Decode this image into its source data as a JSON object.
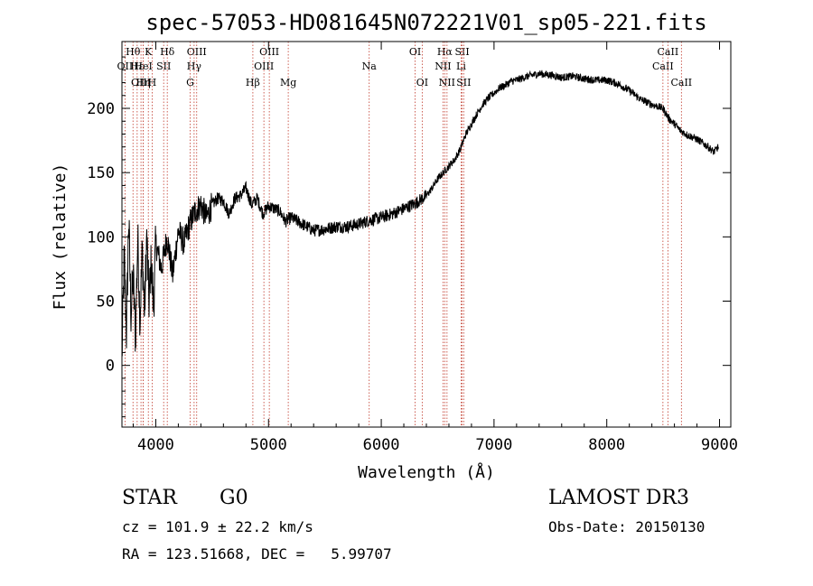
{
  "chart_data": {
    "type": "line",
    "title": "spec-57053-HD081645N072221V01_sp05-221.fits",
    "xlabel": "Wavelength (Å)",
    "ylabel": "Flux (relative)",
    "xlim": [
      3700,
      9100
    ],
    "ylim": [
      -48,
      252
    ],
    "xticks": [
      4000,
      5000,
      6000,
      7000,
      8000,
      9000
    ],
    "yticks": [
      0,
      50,
      100,
      150,
      200
    ],
    "series": [
      {
        "name": "flux",
        "x": [
          3700,
          3720,
          3740,
          3760,
          3780,
          3800,
          3820,
          3840,
          3860,
          3880,
          3900,
          3920,
          3940,
          3960,
          3980,
          4000,
          4050,
          4100,
          4150,
          4200,
          4250,
          4300,
          4350,
          4400,
          4450,
          4500,
          4550,
          4600,
          4650,
          4700,
          4750,
          4800,
          4850,
          4900,
          4950,
          5000,
          5050,
          5100,
          5150,
          5200,
          5300,
          5400,
          5500,
          5600,
          5700,
          5800,
          5900,
          6000,
          6100,
          6200,
          6300,
          6400,
          6450,
          6500,
          6550,
          6600,
          6650,
          6700,
          6750,
          6800,
          6850,
          6900,
          6950,
          7000,
          7050,
          7100,
          7150,
          7200,
          7300,
          7400,
          7500,
          7600,
          7700,
          7800,
          7900,
          8000,
          8100,
          8200,
          8300,
          8400,
          8500,
          8550,
          8600,
          8650,
          8700,
          8750,
          8800,
          8850,
          8900,
          8950,
          8990
        ],
        "y": [
          5,
          85,
          25,
          115,
          40,
          70,
          20,
          100,
          35,
          90,
          40,
          100,
          50,
          80,
          45,
          95,
          75,
          100,
          70,
          105,
          95,
          110,
          120,
          125,
          115,
          125,
          130,
          128,
          118,
          130,
          132,
          138,
          125,
          130,
          118,
          124,
          122,
          120,
          112,
          115,
          110,
          105,
          106,
          108,
          108,
          110,
          113,
          115,
          118,
          122,
          126,
          132,
          138,
          145,
          150,
          155,
          160,
          168,
          180,
          188,
          196,
          203,
          208,
          212,
          216,
          218,
          221,
          222,
          225,
          227,
          226,
          224,
          225,
          223,
          222,
          222,
          219,
          214,
          207,
          203,
          200,
          192,
          188,
          183,
          180,
          178,
          176,
          173,
          170,
          166,
          170
        ]
      }
    ],
    "lines": [
      {
        "name": "Hθ",
        "x": 3798,
        "row": 1
      },
      {
        "name": "OII",
        "x": 3727,
        "row": 2
      },
      {
        "name": "OIII",
        "x": 3869,
        "row": 3
      },
      {
        "name": "Hε",
        "x": 3835,
        "row": 2
      },
      {
        "name": "K",
        "x": 3934,
        "row": 1
      },
      {
        "name": "HeI",
        "x": 3889,
        "row": 2
      },
      {
        "name": "Hη",
        "x": 3889,
        "row": 3
      },
      {
        "name": "SII",
        "x": 4070,
        "row": 2
      },
      {
        "name": "H",
        "x": 3968,
        "row": 3
      },
      {
        "name": "Hδ",
        "x": 4102,
        "row": 1
      },
      {
        "name": "OIII",
        "x": 4363,
        "row": 1
      },
      {
        "name": "Hγ",
        "x": 4340,
        "row": 2
      },
      {
        "name": "G",
        "x": 4305,
        "row": 3
      },
      {
        "name": "OIII",
        "x": 5007,
        "row": 1
      },
      {
        "name": "OIII",
        "x": 4959,
        "row": 2
      },
      {
        "name": "Hβ",
        "x": 4861,
        "row": 3
      },
      {
        "name": "Mg",
        "x": 5175,
        "row": 3
      },
      {
        "name": "Na",
        "x": 5893,
        "row": 2
      },
      {
        "name": "OI",
        "x": 6300,
        "row": 1
      },
      {
        "name": "OI",
        "x": 6363,
        "row": 3
      },
      {
        "name": "Hα",
        "x": 6563,
        "row": 1
      },
      {
        "name": "NII",
        "x": 6548,
        "row": 2
      },
      {
        "name": "NII",
        "x": 6583,
        "row": 3
      },
      {
        "name": "SII",
        "x": 6717,
        "row": 1
      },
      {
        "name": "Li",
        "x": 6708,
        "row": 2
      },
      {
        "name": "SII",
        "x": 6731,
        "row": 3
      },
      {
        "name": "CaII",
        "x": 8498,
        "row": 2
      },
      {
        "name": "CaII",
        "x": 8542,
        "row": 1
      },
      {
        "name": "CaII",
        "x": 8662,
        "row": 3
      }
    ]
  },
  "info": {
    "class_label": "STAR",
    "subclass": "G0",
    "survey": "LAMOST DR3",
    "cz": "cz = 101.9 ± 22.2 km/s",
    "obs_date": "Obs-Date: 20150130",
    "radec": "RA = 123.51668, DEC =   5.99707"
  }
}
